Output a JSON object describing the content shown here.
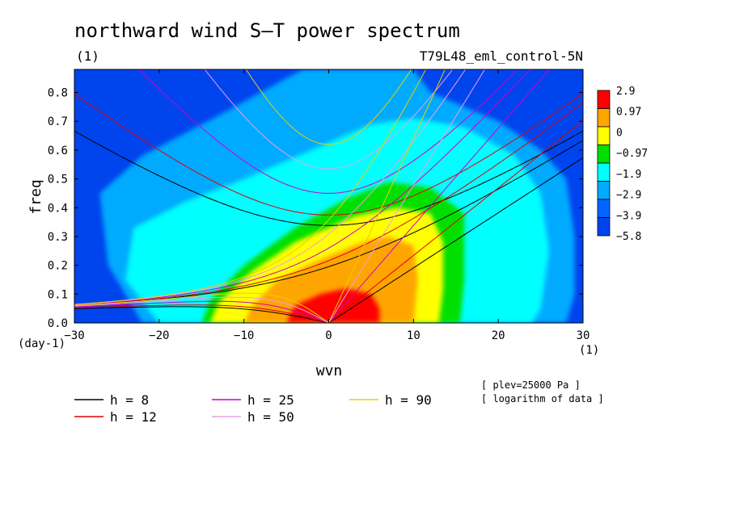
{
  "chart_data": {
    "type": "heatmap",
    "title": "northward wind S–T power spectrum",
    "subtitle_left": "(1)",
    "subtitle_right": "T79L48_eml_control-5N",
    "xlabel": "wvn",
    "ylabel": "freq",
    "x_unit": "(1)",
    "y_unit": "(day-1)",
    "xlim": [
      -30,
      30
    ],
    "ylim": [
      0,
      0.88
    ],
    "x_ticks": [
      -30,
      -20,
      -10,
      0,
      10,
      20,
      30
    ],
    "y_ticks": [
      0.0,
      0.1,
      0.2,
      0.3,
      0.4,
      0.5,
      0.6,
      0.7,
      0.8
    ],
    "x_tick_labels": [
      "−30",
      "−20",
      "−10",
      "0",
      "10",
      "20",
      "30"
    ],
    "y_tick_labels": [
      "0.0",
      "0.1",
      "0.2",
      "0.3",
      "0.4",
      "0.5",
      "0.6",
      "0.7",
      "0.8"
    ],
    "colorbar": {
      "labels": [
        "2.9",
        "0.97",
        "0",
        "−0.97",
        "−1.9",
        "−2.9",
        "−3.9",
        "−5.8"
      ],
      "colors": [
        "#ff0000",
        "#ffa500",
        "#ffff00",
        "#00e000",
        "#00ffff",
        "#00aaff",
        "#0066ff",
        "#0044ee"
      ]
    },
    "contour_levels": [
      {
        "level": "−3.9",
        "color": "#00aaff",
        "region": "broad tongue centred near wvn 0, reaching freq 0.87"
      },
      {
        "level": "−2.9",
        "color": "#00ffff",
        "region": "wvn -20 to 26, up to freq 0.71 near wvn 10"
      },
      {
        "level": "−1.9",
        "color": "#00e000",
        "region": "wvn -16 to 16, up to freq 0.49 near wvn 7"
      },
      {
        "level": "−0.97",
        "color": "#ffff00",
        "region": "wvn -14 to 13, up to freq 0.40 near wvn 8"
      },
      {
        "level": "0",
        "color": "#ffa500",
        "region": "wvn -10 to 10, up to freq 0.30 near wvn 6"
      },
      {
        "level": "0.97",
        "color": "#ff0000",
        "region": "wvn -5 to 6, up to freq 0.12 near wvn 2"
      }
    ],
    "series": [
      {
        "name": "h =  8",
        "color": "#000000",
        "eqh": 8
      },
      {
        "name": "h = 12",
        "color": "#e00000",
        "eqh": 12
      },
      {
        "name": "h = 25",
        "color": "#cc00cc",
        "eqh": 25
      },
      {
        "name": "h = 50",
        "color": "#e8a0e8",
        "eqh": 50
      },
      {
        "name": "h = 90",
        "color": "#e8d000",
        "eqh": 90
      }
    ],
    "annotations": [
      "[ plev=25000 Pa ]",
      "[ logarithm of data ]"
    ],
    "grid": false,
    "legend_position": "bottom"
  },
  "colors": {
    "background": "#0044ee",
    "plot_border": "#000000"
  }
}
